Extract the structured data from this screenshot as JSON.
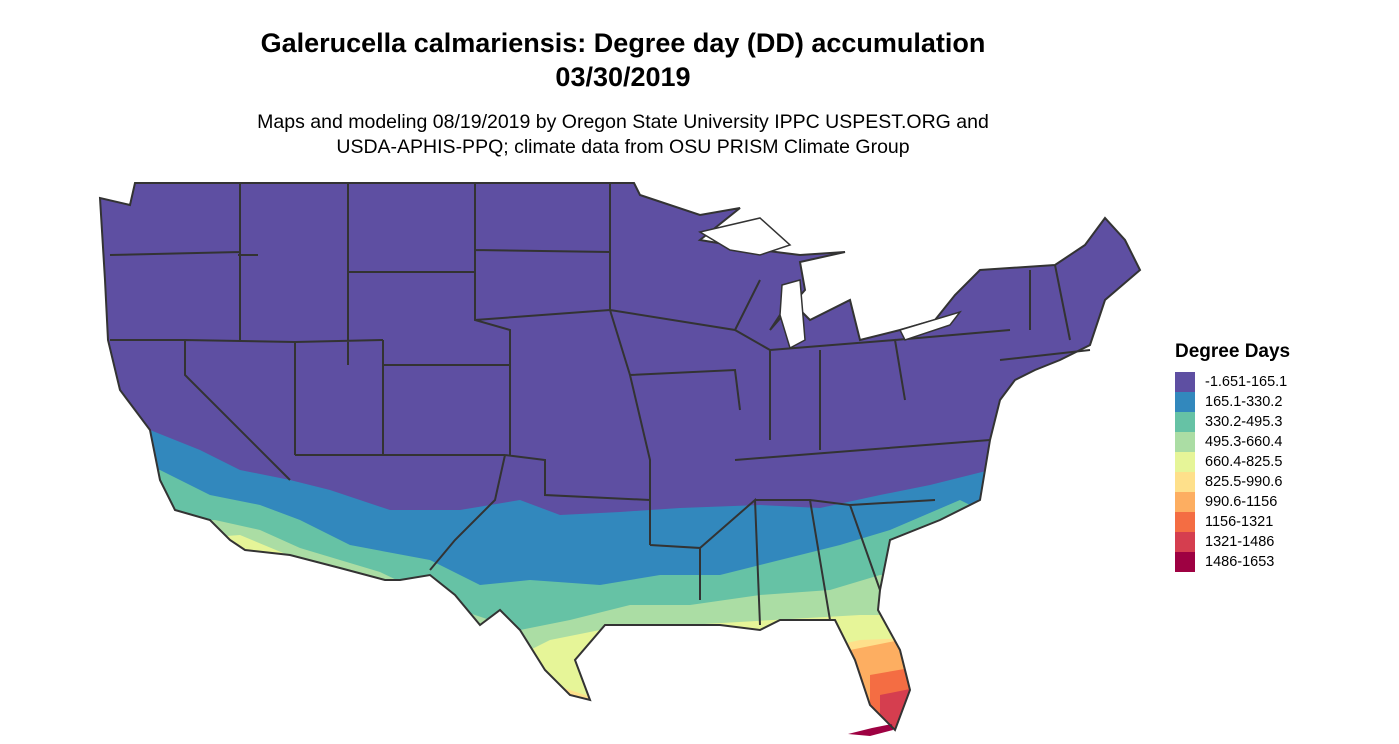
{
  "title": {
    "line1": "Galerucella calmariensis: Degree day (DD) accumulation",
    "line2": "03/30/2019"
  },
  "subtitle": {
    "line1": "Maps and modeling 08/19/2019 by Oregon State University IPPC USPEST.ORG and",
    "line2": "USDA-APHIS-PPQ; climate data from OSU PRISM Climate Group"
  },
  "legend": {
    "title": "Degree Days",
    "items": [
      {
        "label": "-1.651-165.1",
        "color": "#5e4fa2"
      },
      {
        "label": "165.1-330.2",
        "color": "#3288bd"
      },
      {
        "label": "330.2-495.3",
        "color": "#66c2a5"
      },
      {
        "label": "495.3-660.4",
        "color": "#abdda4"
      },
      {
        "label": "660.4-825.5",
        "color": "#e6f598"
      },
      {
        "label": "825.5-990.6",
        "color": "#fee08b"
      },
      {
        "label": "990.6-1156",
        "color": "#fdae61"
      },
      {
        "label": "1156-1321",
        "color": "#f46d43"
      },
      {
        "label": "1321-1486",
        "color": "#d53e4f"
      },
      {
        "label": "1486-1653",
        "color": "#9e0142"
      }
    ]
  },
  "map": {
    "region": "Contiguous United States",
    "boundary_color": "#333333"
  }
}
